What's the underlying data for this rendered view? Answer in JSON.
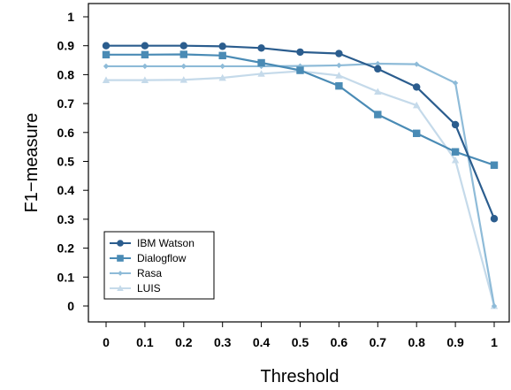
{
  "chart_data": {
    "type": "line",
    "title": "",
    "xlabel": "Threshold",
    "ylabel": "F1−measure",
    "x": [
      0,
      0.1,
      0.2,
      0.3,
      0.4,
      0.5,
      0.6,
      0.7,
      0.8,
      0.9,
      1
    ],
    "x_ticks": [
      "0",
      "0.1",
      "0.2",
      "0.3",
      "0.4",
      "0.5",
      "0.6",
      "0.7",
      "0.8",
      "0.9",
      "1"
    ],
    "y_ticks": [
      "0",
      "0.1",
      "0.2",
      "0.3",
      "0.4",
      "0.5",
      "0.6",
      "0.7",
      "0.8",
      "0.9",
      "1"
    ],
    "xlim": [
      0,
      1
    ],
    "ylim": [
      0,
      1
    ],
    "grid": false,
    "legend_position": "bottom-left",
    "series": [
      {
        "name": "IBM Watson",
        "marker": "circle",
        "color": "#2b5d8e",
        "values": [
          0.9,
          0.9,
          0.9,
          0.898,
          0.892,
          0.878,
          0.873,
          0.82,
          0.757,
          0.627,
          0.302
        ]
      },
      {
        "name": "Dialogflow",
        "marker": "square",
        "color": "#4a8bb5",
        "values": [
          0.869,
          0.869,
          0.87,
          0.866,
          0.841,
          0.815,
          0.761,
          0.662,
          0.597,
          0.533,
          0.487
        ]
      },
      {
        "name": "Rasa",
        "marker": "diamond",
        "color": "#8ebbd8",
        "values": [
          0.829,
          0.829,
          0.829,
          0.829,
          0.829,
          0.83,
          0.832,
          0.838,
          0.836,
          0.771,
          0.0
        ]
      },
      {
        "name": "LUIS",
        "marker": "triangle",
        "color": "#c5daea",
        "values": [
          0.781,
          0.781,
          0.782,
          0.789,
          0.803,
          0.812,
          0.797,
          0.741,
          0.694,
          0.504,
          0.0
        ]
      }
    ]
  }
}
